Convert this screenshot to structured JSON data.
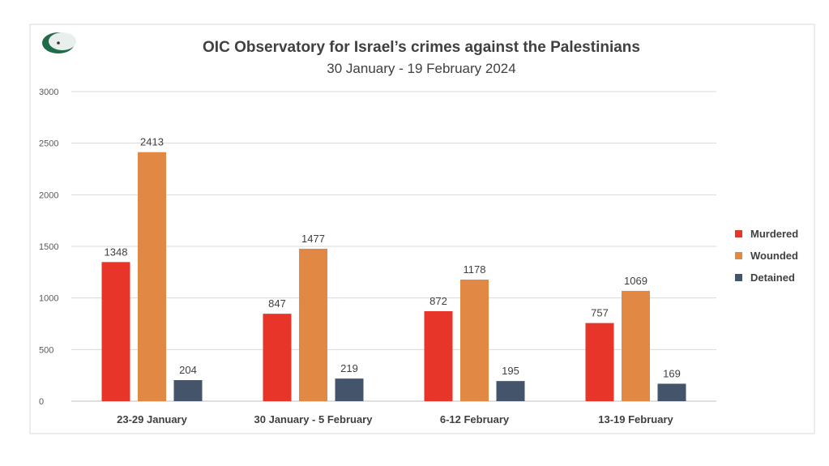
{
  "chart_data": {
    "type": "bar",
    "title": "OIC Observatory for Israel’s crimes against the Palestinians",
    "subtitle": "30 January - 19 February 2024",
    "categories": [
      "23-29 January",
      "30 January - 5 February",
      "6-12 February",
      "13-19 February"
    ],
    "series": [
      {
        "name": "Murdered",
        "color": "#e8352a",
        "values": [
          1348,
          847,
          872,
          757
        ]
      },
      {
        "name": "Wounded",
        "color": "#e08844",
        "values": [
          2413,
          1477,
          1178,
          1069
        ]
      },
      {
        "name": "Detained",
        "color": "#44546a",
        "values": [
          204,
          219,
          195,
          169
        ]
      }
    ],
    "ylim": [
      0,
      3000
    ],
    "yticks": [
      0,
      500,
      1000,
      1500,
      2000,
      2500,
      3000
    ],
    "grid": true,
    "legend": "right",
    "data_labels": true,
    "logo": "OIC crescent logo"
  }
}
